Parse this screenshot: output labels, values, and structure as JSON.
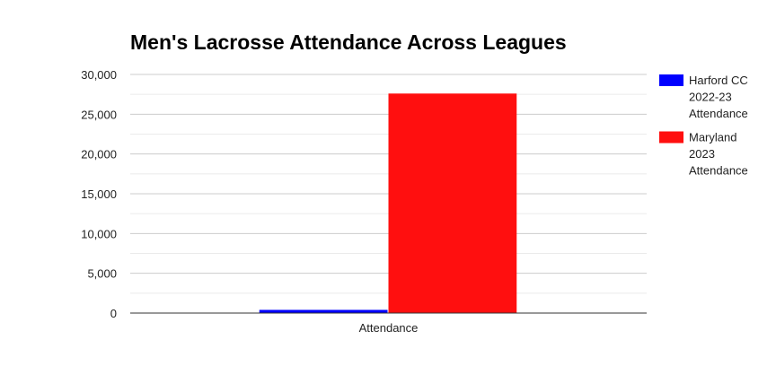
{
  "chart_data": {
    "type": "bar",
    "title": "Men's Lacrosse Attendance Across Leagues",
    "xlabel": "",
    "ylabel": "",
    "categories": [
      "Attendance"
    ],
    "series": [
      {
        "name": "Harford CC 2022-23 Attendance",
        "values": [
          400
        ],
        "color": "#0000ff"
      },
      {
        "name": "Maryland 2023 Attendance",
        "values": [
          27600
        ],
        "color": "#ff0f0f"
      }
    ],
    "ylim": [
      0,
      30000
    ],
    "yticks": [
      0,
      5000,
      10000,
      15000,
      20000,
      25000,
      30000
    ],
    "ytick_labels": [
      "0",
      "5,000",
      "10,000",
      "15,000",
      "20,000",
      "25,000",
      "30,000"
    ],
    "grid": true,
    "legend_position": "right"
  }
}
